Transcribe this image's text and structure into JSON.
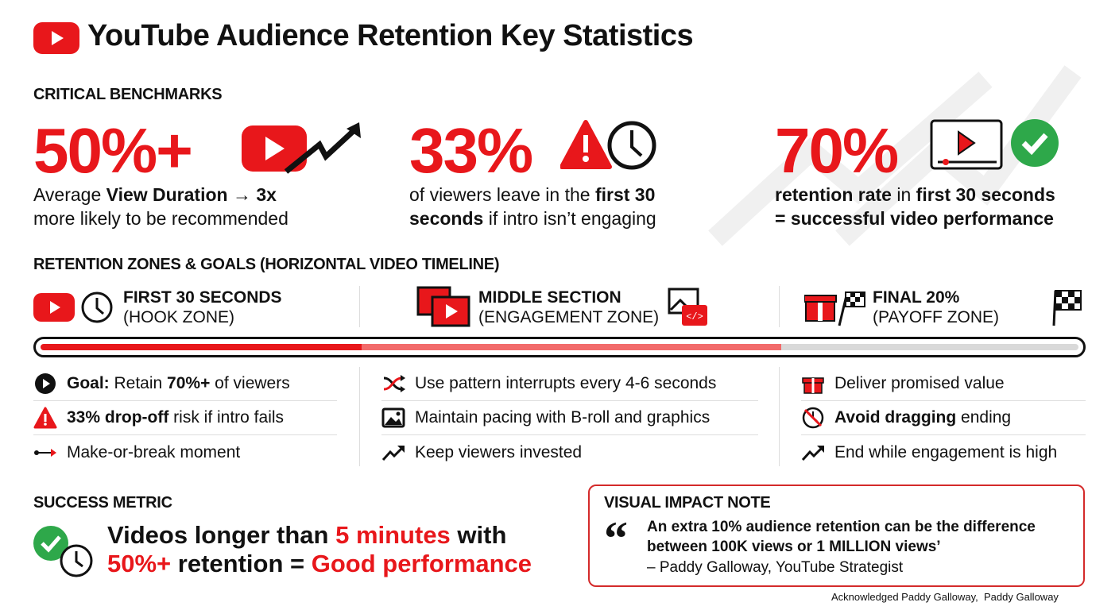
{
  "header": {
    "title": "YouTube Audience Retention Key Statistics"
  },
  "colors": {
    "accent": "#e8171b",
    "success": "#2ea84a",
    "light_red": "#f26b6b",
    "grey": "#d9d9d9"
  },
  "benchmarks": {
    "heading": "CRITICAL BENCHMARKS",
    "items": [
      {
        "value": "50%+",
        "l1a": "Average ",
        "l1b": "View Duration → 3x",
        "l2a": "more likely to be recommended",
        "l2b": ""
      },
      {
        "value": "33%",
        "l1a": "of viewers leave in the ",
        "l1b": "first 30",
        "l2a": "seconds",
        "l2b": " if intro isn’t engaging"
      },
      {
        "value": "70%",
        "l1a": "retention rate",
        "l1b": " in ",
        "l1c": "first 30 seconds",
        "l2a": "= successful video performance"
      }
    ]
  },
  "zones": {
    "heading": "RETENTION ZONES & GOALS (HORIZONTAL VIDEO TIMELINE)",
    "items": [
      {
        "title": "FIRST 30 SECONDS",
        "subtitle": "(HOOK ZONE)",
        "rows": [
          {
            "bold": "Goal:",
            "text": " Retain ",
            "bold2": "70%+",
            "text2": " of viewers",
            "icon": "play-circle-icon"
          },
          {
            "bold": "33% drop-off",
            "text": " risk if intro fails",
            "icon": "warning-icon"
          },
          {
            "text": "Make-or-break moment",
            "icon": "arrow-line-icon"
          }
        ]
      },
      {
        "title": "MIDDLE SECTION",
        "subtitle": "(ENGAGEMENT ZONE)",
        "rows": [
          {
            "text": "Use pattern interrupts every 4-6 seconds",
            "icon": "shuffle-icon"
          },
          {
            "text": "Maintain pacing with B-roll and graphics",
            "icon": "image-icon"
          },
          {
            "text": "Keep viewers invested",
            "icon": "trend-up-icon"
          }
        ]
      },
      {
        "title": "FINAL 20%",
        "subtitle": "(PAYOFF ZONE)",
        "rows": [
          {
            "text": "Deliver promised value",
            "icon": "gift-icon"
          },
          {
            "bold": "Avoid dragging",
            "text": " ending",
            "icon": "no-clock-icon"
          },
          {
            "text": "End while engagement is high",
            "icon": "trend-up-icon"
          }
        ]
      }
    ]
  },
  "success": {
    "heading": "SUCCESS METRIC",
    "l1a": "Videos longer than ",
    "l1b": "5 minutes",
    "l1c": " with",
    "l2a": "50%+",
    "l2b": " retention = ",
    "l2c": "Good performance"
  },
  "note": {
    "heading": "VISUAL IMPACT NOTE",
    "quote_mark": "“",
    "quote": "An extra 10% audience retention can be the difference between 100K views or 1 MILLION views’",
    "attribution": "– Paddy Galloway, YouTube Strategist"
  },
  "footer": "Acknowledged Paddy Galloway,  Paddy Galloway"
}
